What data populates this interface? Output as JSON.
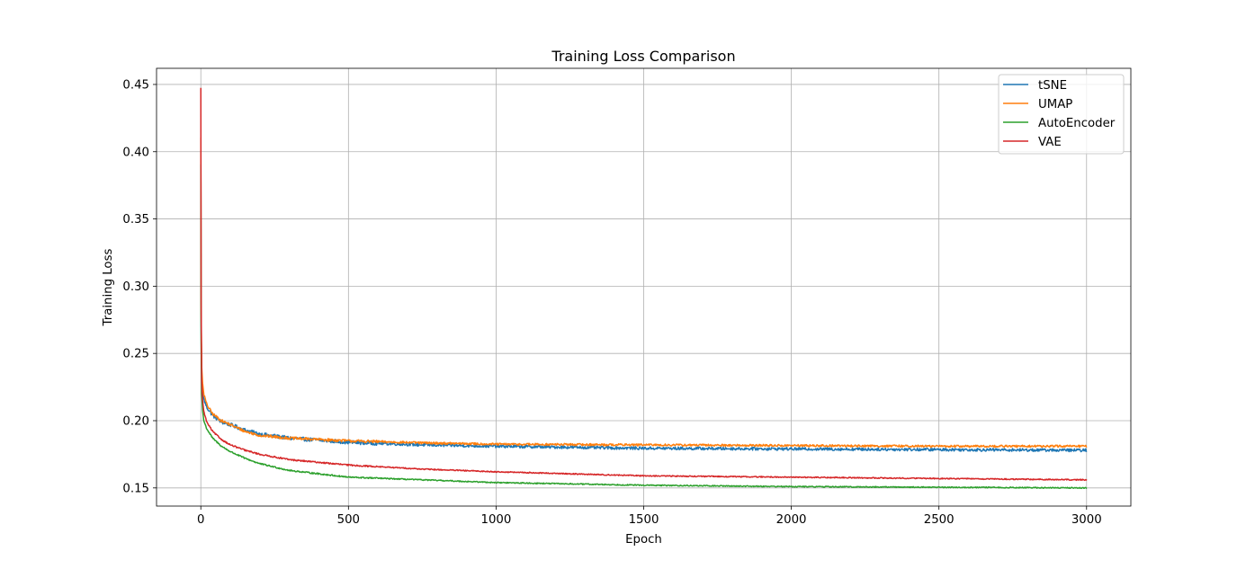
{
  "chart_data": {
    "type": "line",
    "title": "Training Loss Comparison",
    "xlabel": "Epoch",
    "ylabel": "Training Loss",
    "xlim": [
      -150,
      3150
    ],
    "ylim": [
      0.1365,
      0.462
    ],
    "xticks": [
      0,
      500,
      1000,
      1500,
      2000,
      2500,
      3000
    ],
    "yticks": [
      0.15,
      0.2,
      0.25,
      0.3,
      0.35,
      0.4,
      0.45
    ],
    "xtick_labels": [
      "0",
      "500",
      "1000",
      "1500",
      "2000",
      "2500",
      "3000"
    ],
    "ytick_labels": [
      "0.15",
      "0.20",
      "0.25",
      "0.30",
      "0.35",
      "0.40",
      "0.45"
    ],
    "grid": true,
    "legend_position": "top-right",
    "series": [
      {
        "name": "tSNE",
        "color": "#1f77b4",
        "noise": 0.0011,
        "x": [
          0,
          1,
          3,
          6,
          10,
          20,
          40,
          70,
          100,
          150,
          200,
          300,
          500,
          750,
          1000,
          1500,
          2000,
          2500,
          3000
        ],
        "y": [
          0.4,
          0.27,
          0.235,
          0.222,
          0.216,
          0.21,
          0.204,
          0.199,
          0.197,
          0.193,
          0.19,
          0.187,
          0.184,
          0.182,
          0.181,
          0.1795,
          0.179,
          0.1785,
          0.178
        ]
      },
      {
        "name": "UMAP",
        "color": "#ff7f0e",
        "noise": 0.0008,
        "x": [
          0,
          1,
          3,
          6,
          10,
          20,
          40,
          70,
          100,
          150,
          200,
          300,
          500,
          750,
          1000,
          1500,
          2000,
          2500,
          3000
        ],
        "y": [
          0.41,
          0.28,
          0.24,
          0.228,
          0.22,
          0.212,
          0.205,
          0.2,
          0.197,
          0.192,
          0.189,
          0.187,
          0.185,
          0.1835,
          0.1825,
          0.182,
          0.1815,
          0.181,
          0.181
        ]
      },
      {
        "name": "AutoEncoder",
        "color": "#2ca02c",
        "noise": 0.0004,
        "x": [
          0,
          1,
          3,
          6,
          10,
          20,
          40,
          70,
          100,
          150,
          200,
          300,
          500,
          750,
          1000,
          1500,
          2000,
          2500,
          3000
        ],
        "y": [
          0.39,
          0.26,
          0.22,
          0.208,
          0.2,
          0.194,
          0.187,
          0.181,
          0.177,
          0.172,
          0.168,
          0.163,
          0.158,
          0.156,
          0.154,
          0.152,
          0.151,
          0.1505,
          0.15
        ]
      },
      {
        "name": "VAE",
        "color": "#d62728",
        "noise": 0.0004,
        "x": [
          0,
          1,
          3,
          6,
          10,
          20,
          40,
          70,
          100,
          150,
          200,
          300,
          500,
          750,
          1000,
          1500,
          2000,
          2500,
          3000
        ],
        "y": [
          0.447,
          0.29,
          0.23,
          0.215,
          0.207,
          0.199,
          0.192,
          0.186,
          0.182,
          0.178,
          0.175,
          0.171,
          0.167,
          0.164,
          0.162,
          0.159,
          0.158,
          0.157,
          0.156
        ]
      }
    ]
  }
}
